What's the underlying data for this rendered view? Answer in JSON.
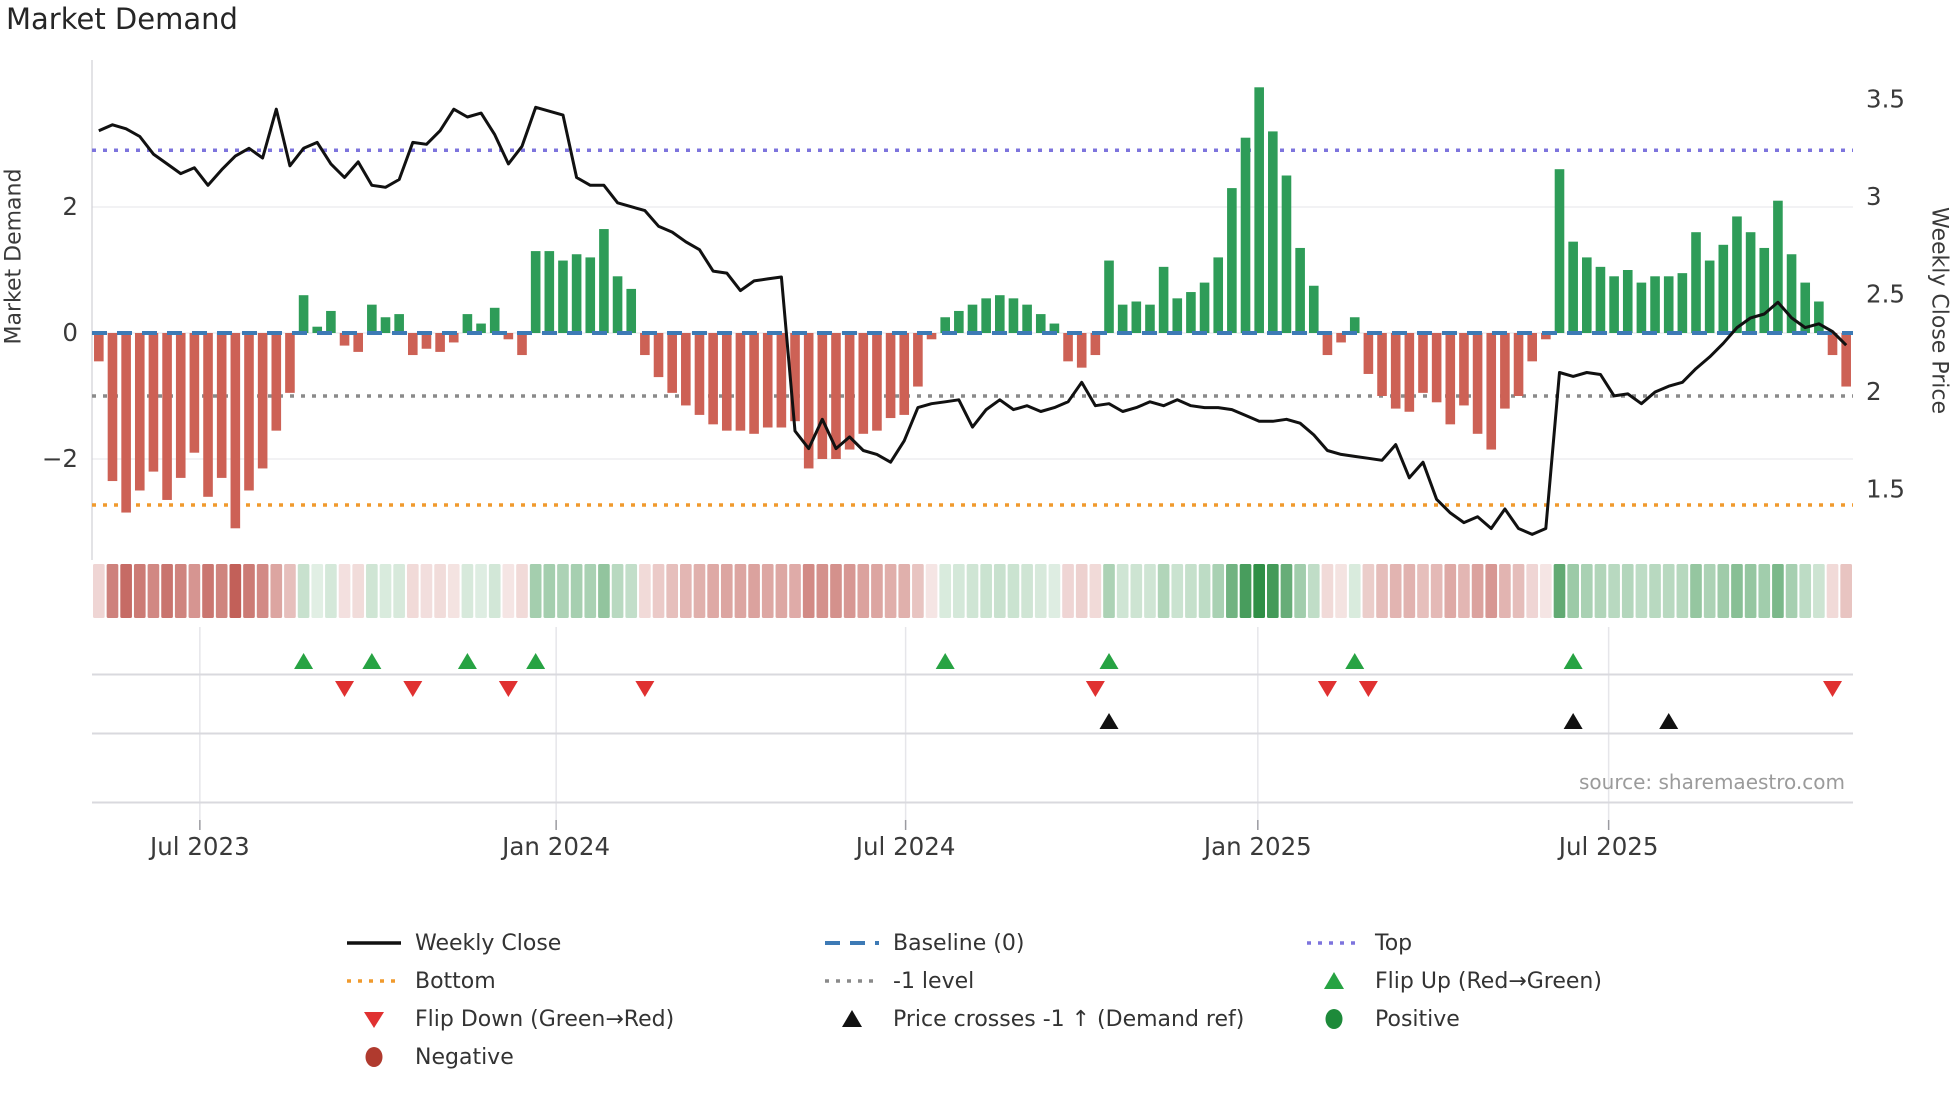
{
  "header": {
    "title": "Market Demand"
  },
  "axes": {
    "left_label": "Market Demand",
    "right_label": "Weekly Close Price",
    "left_ticks": [
      {
        "label": "2",
        "value": 2
      },
      {
        "label": "0",
        "value": 0
      },
      {
        "label": "−2",
        "value": -2
      }
    ],
    "right_ticks": [
      {
        "label": "3.5",
        "value": 3.5
      },
      {
        "label": "3",
        "value": 3.0
      },
      {
        "label": "2.5",
        "value": 2.5
      },
      {
        "label": "2",
        "value": 2.0
      },
      {
        "label": "1.5",
        "value": 1.5
      }
    ],
    "x_ticks": [
      {
        "label": "Jul 2023",
        "week": 7.4
      },
      {
        "label": "Jan 2024",
        "week": 33.5
      },
      {
        "label": "Jul 2024",
        "week": 59.1
      },
      {
        "label": "Jan 2025",
        "week": 84.9
      },
      {
        "label": "Jul 2025",
        "week": 110.6
      }
    ]
  },
  "source": "source: sharemaestro.com",
  "colors": {
    "bar_positive": "#2e9c58",
    "bar_negative": "#cd6155",
    "price_line": "#111111",
    "baseline": "#3d7ab5",
    "top_line": "#7d74dd",
    "bottom_line": "#f09a2d",
    "minus_one_line": "#8a8a8a",
    "flip_up": "#27a343",
    "flip_down": "#e03131",
    "price_cross": "#111111",
    "heat_positive": "#2f8f46",
    "heat_negative": "#b94a42",
    "grid": "#ededf1",
    "panel_line": "#d9d9de",
    "spine": "#d0d0d5",
    "tick_text": "#3a3a3a"
  },
  "legend": [
    {
      "label": "Weekly Close",
      "marker": "line-solid",
      "color": "#111111",
      "col": 0,
      "row": 0
    },
    {
      "label": "Baseline (0)",
      "marker": "line-dashed",
      "color": "#3d7ab5",
      "col": 1,
      "row": 0
    },
    {
      "label": "Top",
      "marker": "line-dotted",
      "color": "#7d74dd",
      "col": 2,
      "row": 0
    },
    {
      "label": "Bottom",
      "marker": "line-dotted",
      "color": "#f09a2d",
      "col": 0,
      "row": 1
    },
    {
      "label": "-1 level",
      "marker": "line-dotted",
      "color": "#8a8a8a",
      "col": 1,
      "row": 1
    },
    {
      "label": "Flip Up (Red→Green)",
      "marker": "triangle-up",
      "color": "#27a343",
      "col": 2,
      "row": 1
    },
    {
      "label": "Flip Down (Green→Red)",
      "marker": "triangle-down",
      "color": "#e03131",
      "col": 0,
      "row": 2
    },
    {
      "label": "Price crosses -1 ↑ (Demand ref)",
      "marker": "triangle-up",
      "color": "#111111",
      "col": 1,
      "row": 2
    },
    {
      "label": "Positive",
      "marker": "circle",
      "color": "#1d8a3a",
      "col": 2,
      "row": 2
    },
    {
      "label": "Negative",
      "marker": "circle",
      "color": "#b03a2e",
      "col": 0,
      "row": 3
    }
  ],
  "chart_data": {
    "type": "bar+line combo with heatmap strip and event markers",
    "title": "Market Demand",
    "x_axis": "weekly, Jun 2023 - Nov 2025",
    "left_ylabel": "Market Demand",
    "right_ylabel": "Weekly Close Price",
    "demand_ylim": [
      -3.6,
      4.33
    ],
    "price_ylim": [
      1.14,
      3.7
    ],
    "baseline": 0,
    "top_level": 2.9,
    "bottom_level": -2.73,
    "minus_one_level": -1,
    "grid_demand_values": [
      2,
      0,
      -2
    ],
    "legend_position": "below chart, 3 columns",
    "series": [
      {
        "name": "Market Demand",
        "type": "bar",
        "values": [
          -0.45,
          -2.35,
          -2.85,
          -2.5,
          -2.2,
          -2.65,
          -2.3,
          -1.9,
          -2.6,
          -2.3,
          -3.1,
          -2.5,
          -2.15,
          -1.55,
          -0.95,
          0.6,
          0.1,
          0.35,
          -0.2,
          -0.3,
          0.45,
          0.25,
          0.3,
          -0.35,
          -0.25,
          -0.3,
          -0.15,
          0.3,
          0.15,
          0.4,
          -0.1,
          -0.35,
          1.3,
          1.3,
          1.15,
          1.25,
          1.2,
          1.65,
          0.9,
          0.7,
          -0.35,
          -0.7,
          -0.95,
          -1.15,
          -1.3,
          -1.45,
          -1.55,
          -1.55,
          -1.6,
          -1.5,
          -1.5,
          -1.4,
          -2.15,
          -2.0,
          -2.0,
          -1.85,
          -1.6,
          -1.55,
          -1.35,
          -1.3,
          -0.85,
          -0.1,
          0.25,
          0.35,
          0.45,
          0.55,
          0.6,
          0.55,
          0.45,
          0.3,
          0.15,
          -0.45,
          -0.55,
          -0.35,
          1.15,
          0.45,
          0.5,
          0.45,
          1.05,
          0.55,
          0.65,
          0.8,
          1.2,
          2.3,
          3.1,
          3.9,
          3.2,
          2.5,
          1.35,
          0.75,
          -0.35,
          -0.15,
          0.25,
          -0.65,
          -1.0,
          -1.2,
          -1.25,
          -0.95,
          -1.1,
          -1.45,
          -1.15,
          -1.6,
          -1.85,
          -1.2,
          -1.0,
          -0.45,
          -0.1,
          2.6,
          1.45,
          1.2,
          1.05,
          0.9,
          1.0,
          0.8,
          0.9,
          0.9,
          0.95,
          1.6,
          1.15,
          1.4,
          1.85,
          1.6,
          1.35,
          2.1,
          1.25,
          0.8,
          0.5,
          -0.35,
          -0.85
        ]
      },
      {
        "name": "Weekly Close",
        "type": "line",
        "values": [
          3.34,
          3.37,
          3.35,
          3.31,
          3.22,
          3.17,
          3.12,
          3.15,
          3.06,
          3.14,
          3.21,
          3.25,
          3.2,
          3.45,
          3.16,
          3.25,
          3.28,
          3.17,
          3.1,
          3.18,
          3.06,
          3.05,
          3.09,
          3.28,
          3.27,
          3.34,
          3.45,
          3.41,
          3.43,
          3.32,
          3.17,
          3.26,
          3.46,
          3.44,
          3.42,
          3.1,
          3.06,
          3.06,
          2.97,
          2.95,
          2.93,
          2.85,
          2.82,
          2.77,
          2.73,
          2.62,
          2.61,
          2.52,
          2.57,
          2.58,
          2.59,
          1.8,
          1.71,
          1.86,
          1.71,
          1.77,
          1.7,
          1.68,
          1.64,
          1.75,
          1.92,
          1.94,
          1.95,
          1.96,
          1.82,
          1.91,
          1.96,
          1.91,
          1.93,
          1.9,
          1.92,
          1.95,
          2.05,
          1.93,
          1.94,
          1.9,
          1.92,
          1.95,
          1.93,
          1.96,
          1.93,
          1.92,
          1.92,
          1.91,
          1.88,
          1.85,
          1.85,
          1.86,
          1.84,
          1.78,
          1.7,
          1.68,
          1.67,
          1.66,
          1.65,
          1.73,
          1.56,
          1.64,
          1.45,
          1.38,
          1.33,
          1.36,
          1.3,
          1.4,
          1.3,
          1.27,
          1.3,
          2.1,
          2.08,
          2.1,
          2.09,
          1.98,
          1.99,
          1.94,
          2.0,
          2.03,
          2.05,
          2.12,
          2.18,
          2.25,
          2.33,
          2.38,
          2.4,
          2.46,
          2.38,
          2.33,
          2.35,
          2.31,
          2.24
        ]
      },
      {
        "name": "Demand heatmap strip",
        "type": "heatmap",
        "note": "one cell per week, red=negative demand, green=positive demand, intensity ~ |demand|"
      }
    ],
    "markers": {
      "flip_up_weeks": [
        15,
        20,
        27,
        32,
        62,
        74,
        92,
        108
      ],
      "flip_down_weeks": [
        18,
        23,
        30,
        40,
        73,
        90,
        93,
        127
      ],
      "price_cross_up_weeks": [
        74,
        108,
        115
      ]
    }
  }
}
